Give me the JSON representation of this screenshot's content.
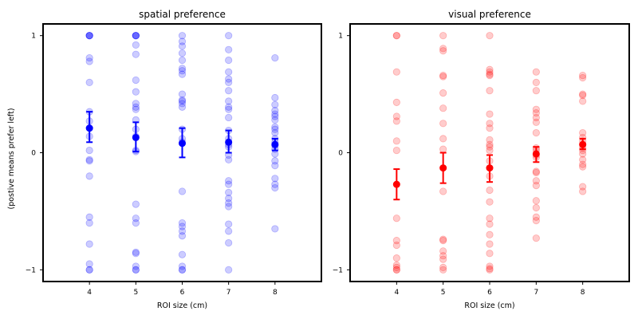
{
  "chart_data": [
    {
      "type": "scatter",
      "title": "spatial preference",
      "xlabel": "ROI size (cm)",
      "ylabel": "(postive means prefer left)",
      "xlim": [
        3,
        9
      ],
      "ylim": [
        -1.1,
        1.1
      ],
      "xticks": [
        "4",
        "5",
        "6",
        "7",
        "8"
      ],
      "yticks": [
        "1",
        "0",
        "−1"
      ],
      "color": "#0000ff",
      "points": [
        {
          "x": 4,
          "values": [
            1,
            1,
            1,
            1,
            0.81,
            0.78,
            0.6,
            0.35,
            0.27,
            0.21,
            0.14,
            0.02,
            -0.06,
            -0.07,
            -0.2,
            -0.55,
            -0.6,
            -0.78,
            -0.95,
            -1,
            -1
          ]
        },
        {
          "x": 5,
          "values": [
            1,
            1,
            1,
            1,
            0.92,
            0.84,
            0.62,
            0.52,
            0.42,
            0.39,
            0.37,
            0.28,
            0.2,
            0.14,
            0.02,
            0.01,
            -0.44,
            -0.56,
            -0.6,
            -0.85,
            -0.86,
            -0.97,
            -1,
            -1
          ]
        },
        {
          "x": 6,
          "values": [
            1,
            0.95,
            0.91,
            0.85,
            0.79,
            0.72,
            0.7,
            0.67,
            0.5,
            0.45,
            0.44,
            0.42,
            0.39,
            0.2,
            0.12,
            0.09,
            -0.33,
            -0.6,
            -0.63,
            -0.67,
            -0.71,
            -0.87,
            -0.97,
            -1,
            -1
          ]
        },
        {
          "x": 7,
          "values": [
            1,
            0.88,
            0.79,
            0.69,
            0.63,
            0.6,
            0.53,
            0.44,
            0.39,
            0.37,
            0.3,
            0.19,
            0.12,
            0.07,
            0.05,
            -0.02,
            -0.06,
            -0.24,
            -0.27,
            -0.34,
            -0.39,
            -0.43,
            -0.46,
            -0.61,
            -0.67,
            -0.77,
            -1
          ]
        },
        {
          "x": 8,
          "values": [
            0.81,
            0.47,
            0.41,
            0.36,
            0.33,
            0.31,
            0.28,
            0.22,
            0.2,
            0.17,
            0.12,
            0.09,
            0.06,
            0.03,
            -0.01,
            -0.07,
            -0.11,
            -0.22,
            -0.27,
            -0.3,
            -0.65
          ]
        }
      ],
      "means": [
        {
          "x": 4,
          "mean": 0.21,
          "lower": 0.09,
          "upper": 0.35
        },
        {
          "x": 5,
          "mean": 0.13,
          "lower": 0.01,
          "upper": 0.26
        },
        {
          "x": 6,
          "mean": 0.08,
          "lower": -0.04,
          "upper": 0.21
        },
        {
          "x": 7,
          "mean": 0.09,
          "lower": 0.0,
          "upper": 0.19
        },
        {
          "x": 8,
          "mean": 0.07,
          "lower": 0.02,
          "upper": 0.12
        }
      ]
    },
    {
      "type": "scatter",
      "title": "visual preference",
      "xlabel": "ROI size (cm)",
      "ylabel": "",
      "xlim": [
        3,
        9
      ],
      "ylim": [
        -1.1,
        1.1
      ],
      "xticks": [
        "4",
        "5",
        "6",
        "7",
        "8"
      ],
      "yticks": [
        "1",
        "0",
        "−1"
      ],
      "color": "#ff0000",
      "points": [
        {
          "x": 4,
          "values": [
            1,
            1,
            0.69,
            0.43,
            0.31,
            0.27,
            0.1,
            0.02,
            -0.56,
            -0.75,
            -0.79,
            -0.9,
            -0.96,
            -0.98,
            -1,
            -1
          ]
        },
        {
          "x": 5,
          "values": [
            1,
            0.89,
            0.87,
            0.66,
            0.65,
            0.51,
            0.38,
            0.25,
            0.12,
            0.03,
            -0.33,
            -0.74,
            -0.75,
            -0.84,
            -0.88,
            -0.91,
            -0.98,
            -1
          ]
        },
        {
          "x": 6,
          "values": [
            1,
            0.71,
            0.69,
            0.67,
            0.66,
            0.53,
            0.33,
            0.25,
            0.21,
            0.11,
            0.07,
            0.05,
            0.02,
            -0.07,
            -0.2,
            -0.32,
            -0.42,
            -0.56,
            -0.61,
            -0.7,
            -0.78,
            -0.86,
            -0.97,
            -0.99,
            -1
          ]
        },
        {
          "x": 7,
          "values": [
            0.69,
            0.6,
            0.53,
            0.37,
            0.34,
            0.3,
            0.26,
            0.17,
            0.04,
            0.02,
            -0.02,
            -0.04,
            -0.16,
            -0.17,
            -0.24,
            -0.28,
            -0.41,
            -0.47,
            -0.55,
            -0.58,
            -0.73
          ]
        },
        {
          "x": 8,
          "values": [
            0.66,
            0.64,
            0.5,
            0.49,
            0.44,
            0.17,
            0.13,
            0.1,
            0.07,
            0.04,
            0.02,
            -0.01,
            -0.06,
            -0.1,
            -0.12,
            -0.29,
            -0.33
          ]
        }
      ],
      "means": [
        {
          "x": 4,
          "mean": -0.27,
          "lower": -0.4,
          "upper": -0.14
        },
        {
          "x": 5,
          "mean": -0.13,
          "lower": -0.26,
          "upper": 0.0
        },
        {
          "x": 6,
          "mean": -0.13,
          "lower": -0.25,
          "upper": -0.02
        },
        {
          "x": 7,
          "mean": -0.01,
          "lower": -0.08,
          "upper": 0.05
        },
        {
          "x": 8,
          "mean": 0.07,
          "lower": 0.03,
          "upper": 0.12
        }
      ]
    }
  ]
}
